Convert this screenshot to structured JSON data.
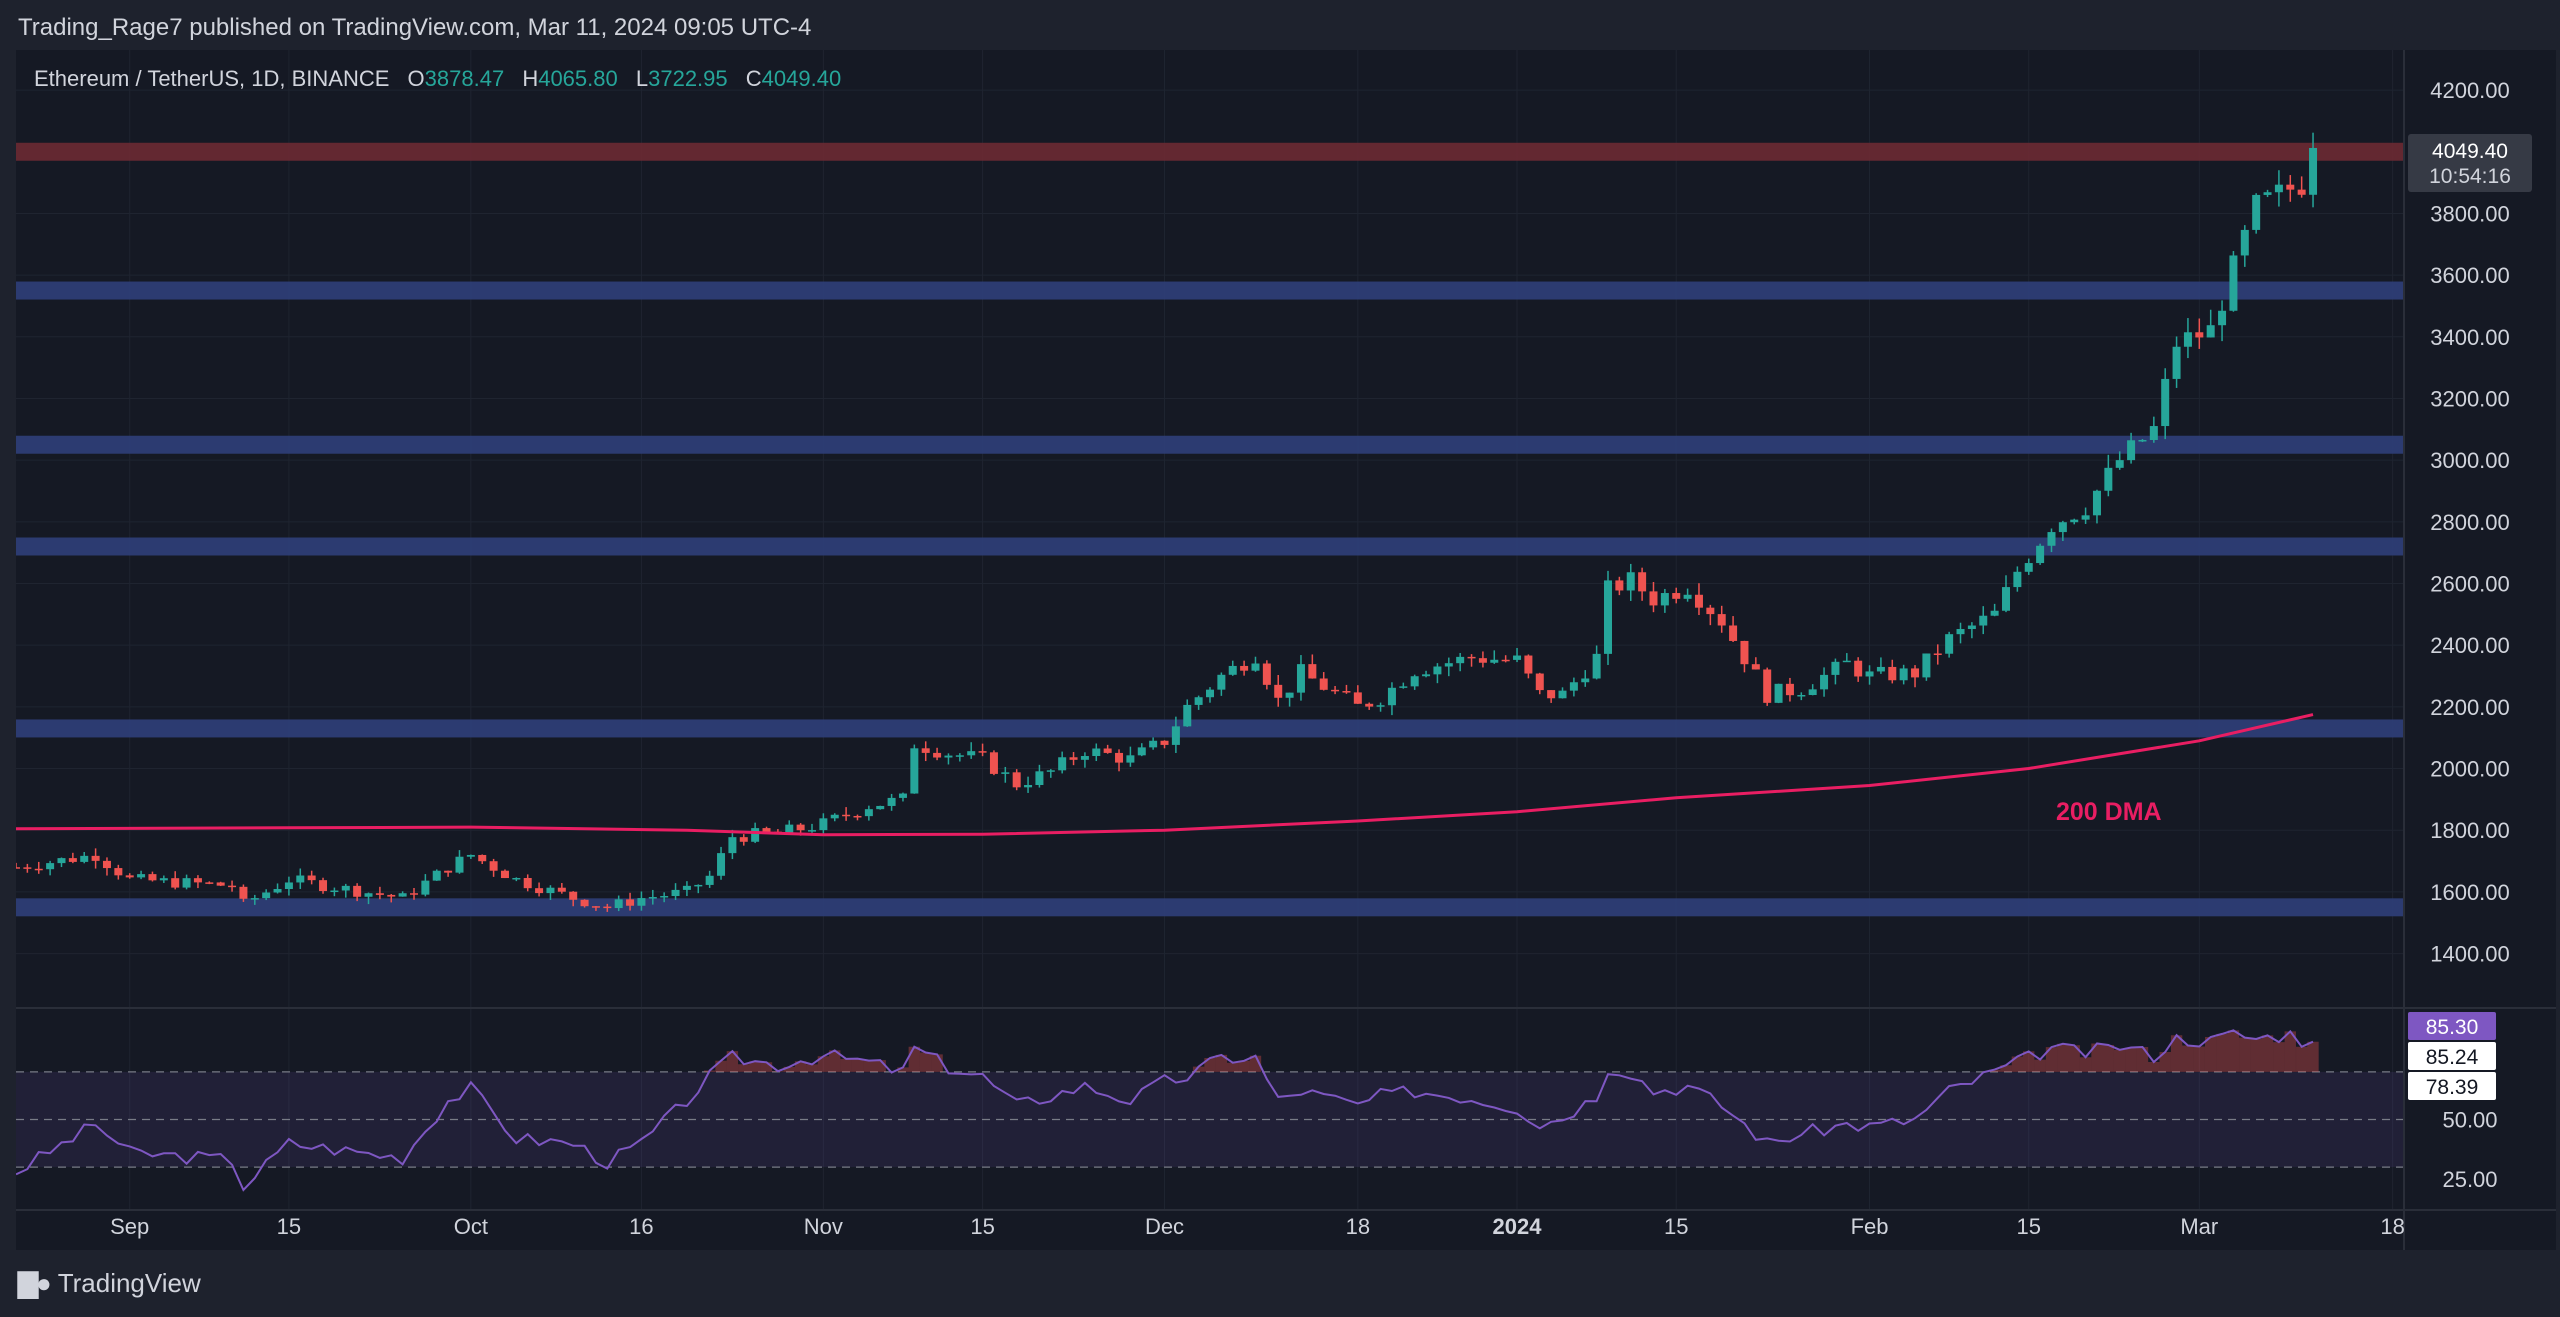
{
  "publisher": "Trading_Rage7 published on TradingView.com, Mar 11, 2024 09:05 UTC-4",
  "branding": "TradingView",
  "legend": {
    "symbol": "Ethereum / TetherUS, 1D, BINANCE",
    "o_label": "O",
    "o": "3878.47",
    "h_label": "H",
    "h": "4065.80",
    "l_label": "L",
    "l": "3722.95",
    "c_label": "C",
    "c": "4049.40"
  },
  "price_tag": {
    "price": "4049.40",
    "countdown": "10:54:16"
  },
  "ma_label": "200 DMA",
  "rsi_tags": [
    "85.30",
    "85.24",
    "78.39"
  ],
  "colors": {
    "up": "#26a69a",
    "down": "#ef5350",
    "ma": "#e91e63",
    "rsi": "#7e57c2",
    "zone_blue": "#2f3f7a",
    "zone_red": "#6b2a33",
    "bg": "#151924"
  },
  "chart_data": {
    "type": "candlestick",
    "title": "Ethereum / TetherUS, 1D, BINANCE",
    "ylim": [
      1230,
      4330
    ],
    "y_ticks": [
      "4200.00",
      "3800.00",
      "3600.00",
      "3400.00",
      "3200.00",
      "3000.00",
      "2800.00",
      "2600.00",
      "2400.00",
      "2200.00",
      "2000.00",
      "1800.00",
      "1600.00",
      "1400.00"
    ],
    "x_ticks": [
      "Sep",
      "15",
      "Oct",
      "16",
      "Nov",
      "15",
      "Dec",
      "18",
      "2024",
      "15",
      "Feb",
      "15",
      "Mar",
      "18"
    ],
    "x_tick_dates": [
      "2023-09-01",
      "2023-09-15",
      "2023-10-01",
      "2023-10-16",
      "2023-11-01",
      "2023-11-15",
      "2023-12-01",
      "2023-12-18",
      "2024-01-01",
      "2024-01-15",
      "2024-02-01",
      "2024-02-15",
      "2024-03-01",
      "2024-03-18"
    ],
    "horizontal_zones": [
      {
        "level": 4000,
        "color": "red"
      },
      {
        "level": 3550,
        "color": "blue"
      },
      {
        "level": 3050,
        "color": "blue"
      },
      {
        "level": 2720,
        "color": "blue"
      },
      {
        "level": 2130,
        "color": "blue"
      },
      {
        "level": 1550,
        "color": "blue"
      }
    ],
    "close_points": [
      [
        "2023-08-22",
        1680
      ],
      [
        "2023-08-29",
        1720
      ],
      [
        "2023-09-01",
        1640
      ],
      [
        "2023-09-10",
        1620
      ],
      [
        "2023-09-11",
        1560
      ],
      [
        "2023-09-15",
        1640
      ],
      [
        "2023-09-25",
        1580
      ],
      [
        "2023-09-29",
        1680
      ],
      [
        "2023-10-01",
        1720
      ],
      [
        "2023-10-05",
        1640
      ],
      [
        "2023-10-10",
        1580
      ],
      [
        "2023-10-13",
        1550
      ],
      [
        "2023-10-16",
        1580
      ],
      [
        "2023-10-20",
        1600
      ],
      [
        "2023-10-22",
        1650
      ],
      [
        "2023-10-24",
        1780
      ],
      [
        "2023-10-28",
        1790
      ],
      [
        "2023-11-01",
        1820
      ],
      [
        "2023-11-05",
        1880
      ],
      [
        "2023-11-08",
        1900
      ],
      [
        "2023-11-09",
        2080
      ],
      [
        "2023-11-12",
        2050
      ],
      [
        "2023-11-15",
        2030
      ],
      [
        "2023-11-18",
        1950
      ],
      [
        "2023-11-21",
        1990
      ],
      [
        "2023-11-24",
        2060
      ],
      [
        "2023-11-28",
        2030
      ],
      [
        "2023-12-01",
        2090
      ],
      [
        "2023-12-03",
        2200
      ],
      [
        "2023-12-06",
        2300
      ],
      [
        "2023-12-09",
        2370
      ],
      [
        "2023-12-11",
        2220
      ],
      [
        "2023-12-13",
        2310
      ],
      [
        "2023-12-18",
        2200
      ],
      [
        "2023-12-20",
        2230
      ],
      [
        "2023-12-23",
        2320
      ],
      [
        "2023-12-28",
        2360
      ],
      [
        "2024-01-01",
        2350
      ],
      [
        "2024-01-03",
        2240
      ],
      [
        "2024-01-05",
        2240
      ],
      [
        "2024-01-08",
        2360
      ],
      [
        "2024-01-09",
        2580
      ],
      [
        "2024-01-11",
        2610
      ],
      [
        "2024-01-13",
        2550
      ],
      [
        "2024-01-16",
        2590
      ],
      [
        "2024-01-19",
        2480
      ],
      [
        "2024-01-22",
        2300
      ],
      [
        "2024-01-23",
        2240
      ],
      [
        "2024-01-26",
        2260
      ],
      [
        "2024-01-30",
        2340
      ],
      [
        "2024-02-01",
        2300
      ],
      [
        "2024-02-05",
        2310
      ],
      [
        "2024-02-08",
        2420
      ],
      [
        "2024-02-12",
        2500
      ],
      [
        "2024-02-14",
        2640
      ],
      [
        "2024-02-17",
        2790
      ],
      [
        "2024-02-20",
        2850
      ],
      [
        "2024-02-23",
        3000
      ],
      [
        "2024-02-26",
        3100
      ],
      [
        "2024-02-28",
        3380
      ],
      [
        "2024-03-02",
        3420
      ],
      [
        "2024-03-04",
        3620
      ],
      [
        "2024-03-06",
        3820
      ],
      [
        "2024-03-09",
        3880
      ],
      [
        "2024-03-10",
        3900
      ],
      [
        "2024-03-11",
        4049.4
      ]
    ],
    "ma200_points": [
      [
        "2023-08-22",
        1805
      ],
      [
        "2023-09-15",
        1808
      ],
      [
        "2023-10-01",
        1810
      ],
      [
        "2023-10-20",
        1800
      ],
      [
        "2023-11-01",
        1785
      ],
      [
        "2023-11-15",
        1787
      ],
      [
        "2023-12-01",
        1800
      ],
      [
        "2023-12-18",
        1830
      ],
      [
        "2024-01-01",
        1860
      ],
      [
        "2024-01-15",
        1905
      ],
      [
        "2024-02-01",
        1945
      ],
      [
        "2024-02-15",
        2000
      ],
      [
        "2024-03-01",
        2090
      ],
      [
        "2024-03-11",
        2175
      ]
    ],
    "rsi": {
      "ylim": [
        12,
        96
      ],
      "y_ticks": [
        "50.00",
        "25.00"
      ],
      "levels": [
        70,
        50,
        30
      ],
      "last": 85.3,
      "points": [
        [
          "2023-08-22",
          28
        ],
        [
          "2023-08-29",
          48
        ],
        [
          "2023-09-01",
          36
        ],
        [
          "2023-09-10",
          33
        ],
        [
          "2023-09-11",
          22
        ],
        [
          "2023-09-15",
          40
        ],
        [
          "2023-09-25",
          34
        ],
        [
          "2023-09-29",
          58
        ],
        [
          "2023-10-01",
          63
        ],
        [
          "2023-10-05",
          42
        ],
        [
          "2023-10-10",
          40
        ],
        [
          "2023-10-13",
          32
        ],
        [
          "2023-10-16",
          40
        ],
        [
          "2023-10-20",
          58
        ],
        [
          "2023-10-22",
          68
        ],
        [
          "2023-10-24",
          76
        ],
        [
          "2023-10-28",
          73
        ],
        [
          "2023-11-01",
          77
        ],
        [
          "2023-11-05",
          74
        ],
        [
          "2023-11-08",
          70
        ],
        [
          "2023-11-09",
          80
        ],
        [
          "2023-11-12",
          72
        ],
        [
          "2023-11-15",
          68
        ],
        [
          "2023-11-18",
          56
        ],
        [
          "2023-11-21",
          60
        ],
        [
          "2023-11-24",
          64
        ],
        [
          "2023-11-28",
          58
        ],
        [
          "2023-12-01",
          66
        ],
        [
          "2023-12-03",
          68
        ],
        [
          "2023-12-06",
          76
        ],
        [
          "2023-12-09",
          76
        ],
        [
          "2023-12-11",
          58
        ],
        [
          "2023-12-13",
          62
        ],
        [
          "2023-12-18",
          56
        ],
        [
          "2023-12-20",
          60
        ],
        [
          "2023-12-23",
          62
        ],
        [
          "2023-12-28",
          59
        ],
        [
          "2024-01-01",
          55
        ],
        [
          "2024-01-03",
          48
        ],
        [
          "2024-01-05",
          51
        ],
        [
          "2024-01-08",
          60
        ],
        [
          "2024-01-09",
          72
        ],
        [
          "2024-01-11",
          70
        ],
        [
          "2024-01-13",
          62
        ],
        [
          "2024-01-16",
          64
        ],
        [
          "2024-01-19",
          56
        ],
        [
          "2024-01-22",
          44
        ],
        [
          "2024-01-23",
          40
        ],
        [
          "2024-01-26",
          44
        ],
        [
          "2024-01-30",
          48
        ],
        [
          "2024-02-01",
          47
        ],
        [
          "2024-02-05",
          50
        ],
        [
          "2024-02-08",
          62
        ],
        [
          "2024-02-12",
          70
        ],
        [
          "2024-02-14",
          74
        ],
        [
          "2024-02-17",
          80
        ],
        [
          "2024-02-20",
          78
        ],
        [
          "2024-02-23",
          81
        ],
        [
          "2024-02-26",
          77
        ],
        [
          "2024-02-28",
          84
        ],
        [
          "2024-03-02",
          83
        ],
        [
          "2024-03-04",
          86
        ],
        [
          "2024-03-06",
          84
        ],
        [
          "2024-03-09",
          86
        ],
        [
          "2024-03-10",
          83
        ],
        [
          "2024-03-11",
          85.3
        ]
      ]
    }
  }
}
